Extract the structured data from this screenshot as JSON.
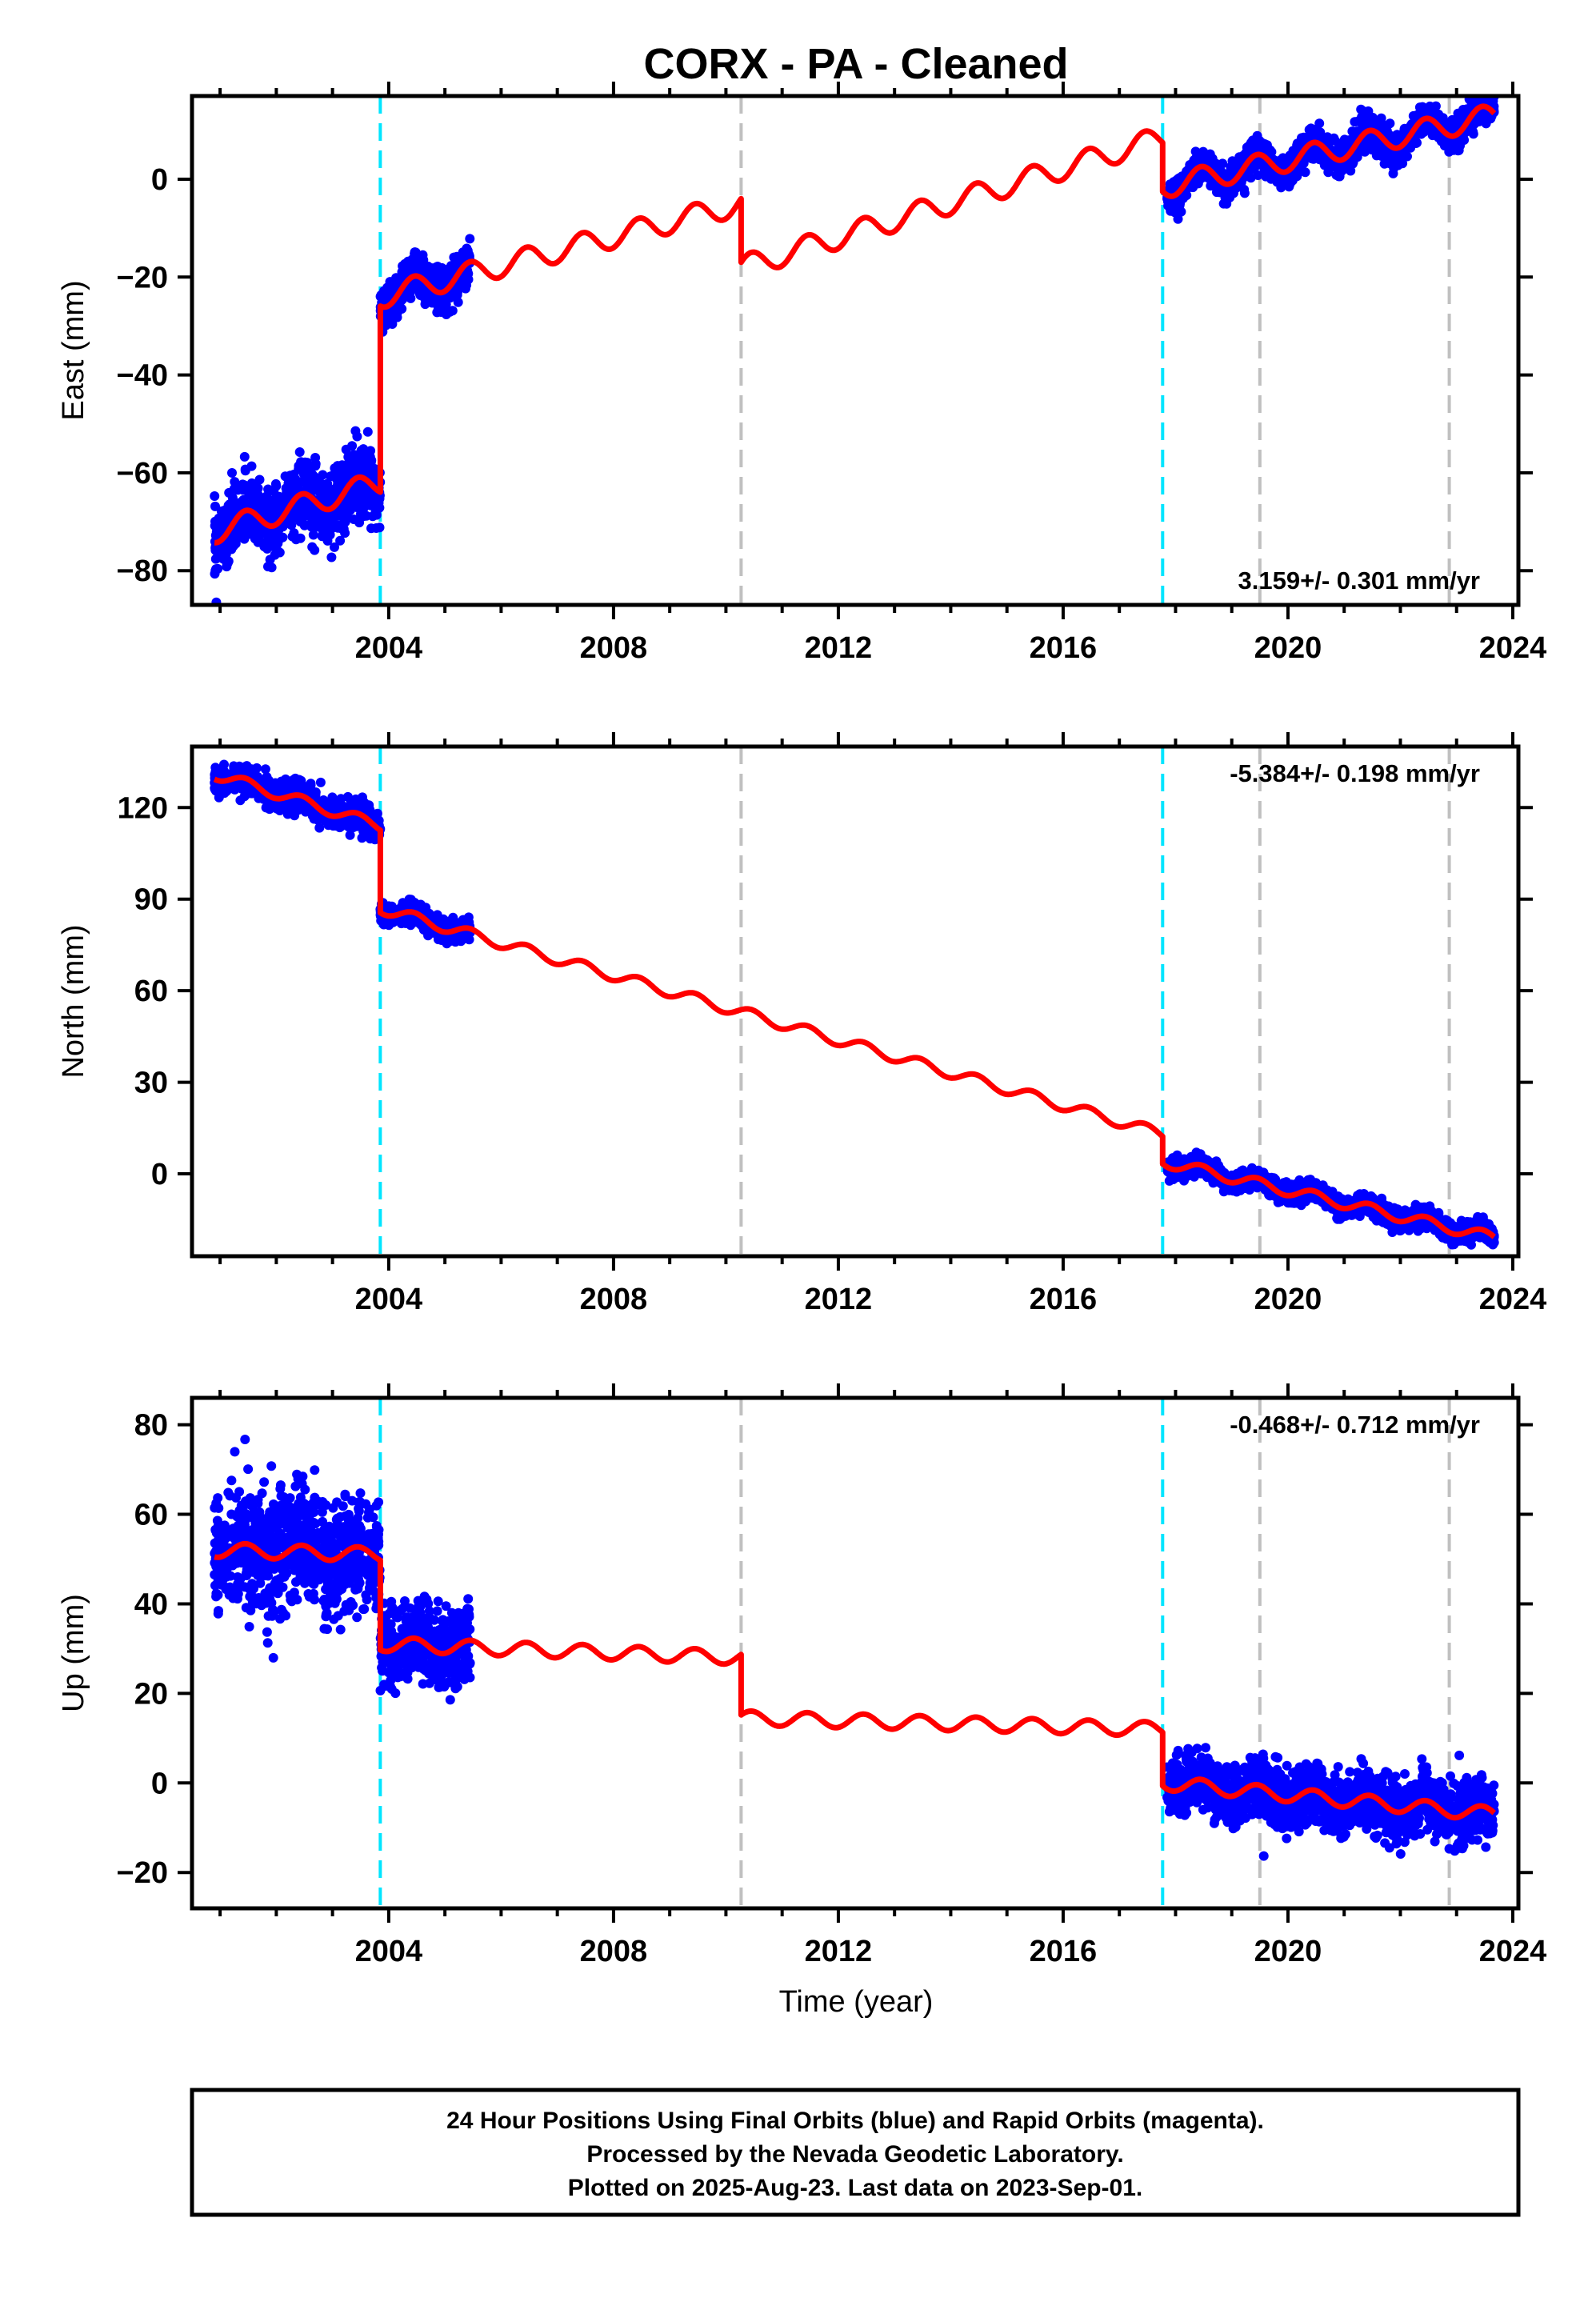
{
  "chart_data": {
    "type": "scatter",
    "title": "CORX  - PA - Cleaned",
    "xlabel": "Time (year)",
    "x_range": [
      2000.5,
      2024.1
    ],
    "x_ticks": [
      2004,
      2008,
      2012,
      2016,
      2020,
      2024
    ],
    "x_tick_labels": [
      "2004",
      "2008",
      "2012",
      "2016",
      "2020",
      "2024"
    ],
    "colors": {
      "data": "#0000ff",
      "model": "#ff0000",
      "offset_equipment": "#00e5ff",
      "offset_other": "#c0c0c0"
    },
    "offsets_cyan": [
      2003.85,
      2017.77
    ],
    "offsets_gray": [
      2010.27,
      2019.5,
      2022.87
    ],
    "panels": [
      {
        "id": "east",
        "ylabel": "East (mm)",
        "ylim": [
          -87,
          17
        ],
        "y_ticks": [
          0,
          -20,
          -40,
          -60,
          -80
        ],
        "y_tick_labels": [
          "0",
          "−20",
          "−40",
          "−60",
          "−80"
        ],
        "rate_label": "3.159+/- 0.301 mm/yr",
        "rate_position": "bottom-right",
        "model": {
          "annual_amplitude": 2.4,
          "segments": [
            {
              "t0": 2000.9,
              "t1": 2003.85,
              "y0": -72.0,
              "y1": -62.0
            },
            {
              "t0": 2003.85,
              "t1": 2010.27,
              "y0": -24.0,
              "y1": -5.0
            },
            {
              "t0": 2010.27,
              "t1": 2017.77,
              "y0": -18.0,
              "y1": 8.5
            },
            {
              "t0": 2017.77,
              "t1": 2023.67,
              "y0": -1.5,
              "y1": 13.0
            }
          ]
        },
        "data_spans": [
          {
            "t0": 2000.9,
            "t1": 2003.85,
            "scatter": 3.5
          },
          {
            "t0": 2003.85,
            "t1": 2005.45,
            "scatter": 2.2
          },
          {
            "t0": 2017.85,
            "t1": 2023.67,
            "scatter": 1.6
          }
        ]
      },
      {
        "id": "north",
        "ylabel": "North (mm)",
        "ylim": [
          -27,
          140
        ],
        "y_ticks": [
          120,
          90,
          60,
          30,
          0
        ],
        "y_tick_labels": [
          "120",
          "90",
          "60",
          "30",
          "0"
        ],
        "rate_label": "-5.384+/- 0.198 mm/yr",
        "rate_position": "top-right",
        "model": {
          "annual_amplitude": 1.8,
          "segments": [
            {
              "t0": 2000.9,
              "t1": 2003.85,
              "y0": 131.0,
              "y1": 114.0
            },
            {
              "t0": 2003.85,
              "t1": 2010.27,
              "y0": 87.0,
              "y1": 53.0
            },
            {
              "t0": 2010.27,
              "t1": 2017.77,
              "y0": 53.0,
              "y1": 13.0
            },
            {
              "t0": 2017.77,
              "t1": 2023.67,
              "y0": 4.0,
              "y1": -21.0
            }
          ]
        },
        "data_spans": [
          {
            "t0": 2000.9,
            "t1": 2003.85,
            "scatter": 2.4
          },
          {
            "t0": 2003.85,
            "t1": 2005.45,
            "scatter": 1.6
          },
          {
            "t0": 2017.85,
            "t1": 2023.67,
            "scatter": 1.6
          }
        ]
      },
      {
        "id": "up",
        "ylabel": "Up (mm)",
        "ylim": [
          -28,
          86
        ],
        "y_ticks": [
          80,
          60,
          40,
          20,
          0,
          -20
        ],
        "y_tick_labels": [
          "80",
          "60",
          "40",
          "20",
          "0",
          "−20"
        ],
        "rate_label": "-0.468+/- 0.712 mm/yr",
        "rate_position": "top-right",
        "model": {
          "annual_amplitude": 1.6,
          "segments": [
            {
              "t0": 2000.9,
              "t1": 2003.85,
              "y0": 52.0,
              "y1": 51.0
            },
            {
              "t0": 2003.85,
              "t1": 2010.27,
              "y0": 31.0,
              "y1": 28.0
            },
            {
              "t0": 2010.27,
              "t1": 2017.77,
              "y0": 14.5,
              "y1": 12.0
            },
            {
              "t0": 2017.77,
              "t1": 2023.67,
              "y0": 0.0,
              "y1": -7.0
            }
          ]
        },
        "data_spans": [
          {
            "t0": 2000.9,
            "t1": 2003.85,
            "scatter": 6.5
          },
          {
            "t0": 2003.85,
            "t1": 2005.45,
            "scatter": 4.0
          },
          {
            "t0": 2017.85,
            "t1": 2023.67,
            "scatter": 3.2
          }
        ]
      }
    ],
    "footer": [
      "24 Hour Positions Using Final Orbits (blue) and Rapid Orbits (magenta).",
      "Processed by the Nevada Geodetic Laboratory.",
      "Plotted on 2025-Aug-23. Last data on 2023-Sep-01."
    ]
  }
}
